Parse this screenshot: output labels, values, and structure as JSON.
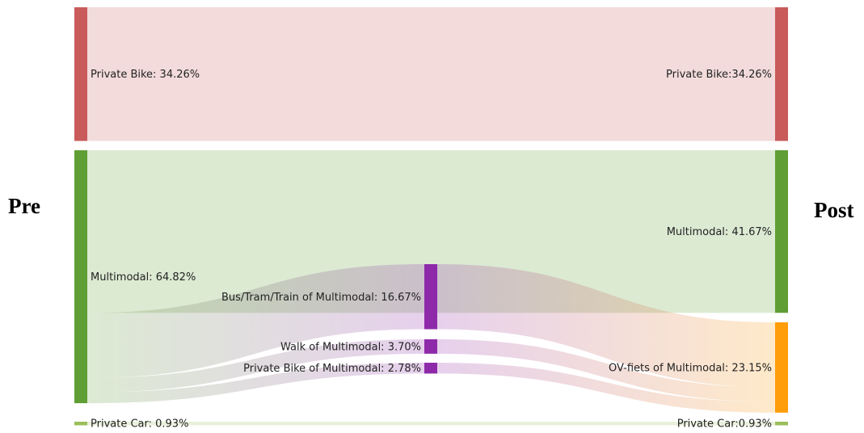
{
  "chart_data": {
    "type": "sankey",
    "left_title": "Pre",
    "right_title": "Post",
    "nodes": [
      {
        "label": "Private Bike: 34.26%",
        "value": 34.26,
        "color": "#c95b5b"
      },
      {
        "label": "Multimodal: 64.82%",
        "value": 64.82,
        "color": "#5f9e35"
      },
      {
        "label": "Private Car: 0.93%",
        "value": 0.93,
        "color": "#9bbf5a"
      },
      {
        "label": "Bus/Tram/Train of Multimodal: 16.67%",
        "value": 16.67,
        "color": "#8e2aaa"
      },
      {
        "label": "Walk of Multimodal: 3.70%",
        "value": 3.7,
        "color": "#8e2aaa"
      },
      {
        "label": "Private Bike of Multimodal: 2.78%",
        "value": 2.78,
        "color": "#8e2aaa"
      },
      {
        "label": "Private Bike:34.26%",
        "value": 34.26,
        "color": "#c95b5b"
      },
      {
        "label": "Multimodal: 41.67%",
        "value": 41.67,
        "color": "#5f9e35"
      },
      {
        "label": "OV-fiets of Multimodal: 23.15%",
        "value": 23.15,
        "color": "#ff9d0a"
      },
      {
        "label": "Private Car:0.93%",
        "value": 0.93,
        "color": "#9bbf5a"
      }
    ],
    "links": [
      {
        "source": 0,
        "target": 6,
        "value": 34.26
      },
      {
        "source": 1,
        "target": 7,
        "value": 41.67
      },
      {
        "source": 1,
        "target": 3,
        "value": 16.67
      },
      {
        "source": 1,
        "target": 4,
        "value": 3.7
      },
      {
        "source": 1,
        "target": 5,
        "value": 2.78
      },
      {
        "source": 3,
        "target": 8,
        "value": 16.67
      },
      {
        "source": 4,
        "target": 8,
        "value": 3.7
      },
      {
        "source": 5,
        "target": 8,
        "value": 2.78
      },
      {
        "source": 2,
        "target": 9,
        "value": 0.93
      }
    ]
  }
}
